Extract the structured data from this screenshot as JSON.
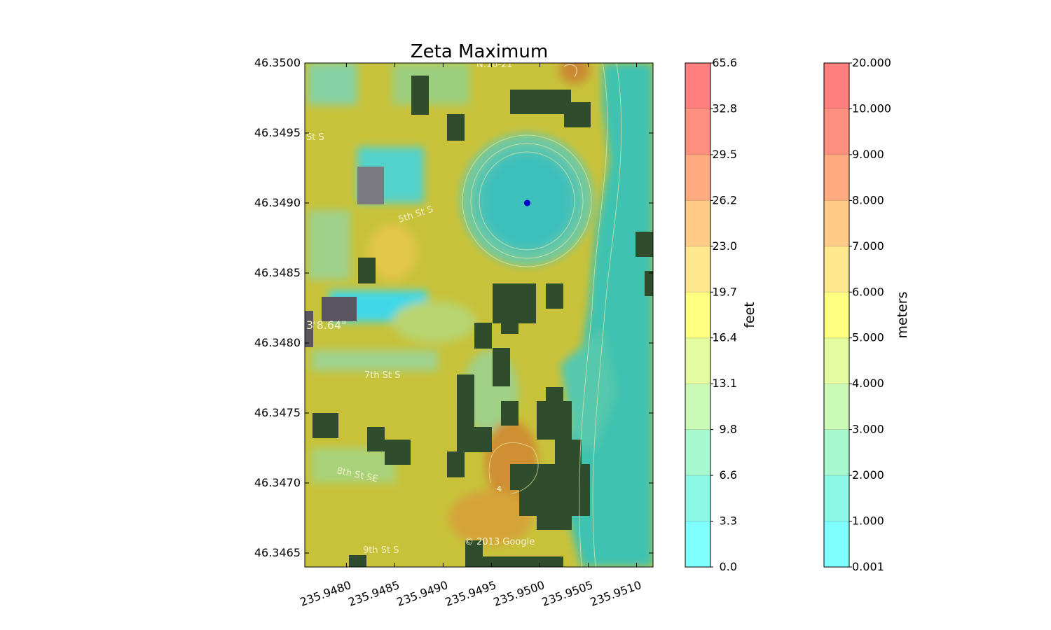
{
  "chart_data": {
    "type": "heatmap",
    "title": "Zeta Maximum",
    "xlabel": "",
    "ylabel": "",
    "x_ticks": [
      "235.9480",
      "235.9485",
      "235.9490",
      "235.9495",
      "235.9500",
      "235.9505",
      "235.9510"
    ],
    "y_ticks": [
      "46.3500",
      "46.3495",
      "46.3490",
      "46.3485",
      "46.3480",
      "46.3475",
      "46.3470",
      "46.3465"
    ],
    "xlim": [
      235.94757,
      235.95117
    ],
    "ylim": [
      46.3464,
      46.35
    ],
    "marker": {
      "lon": 235.94987,
      "lat": 46.349,
      "color": "#0000cc"
    },
    "background_labels": {
      "copyright": "© 2013 Google",
      "coordinate_fragment": "3'8.64\"",
      "streets": [
        "St S",
        "5th St S",
        "7th St S",
        "8th St SE",
        "9th St S",
        "N.16-21"
      ],
      "contour_label": "4"
    },
    "colorbars": [
      {
        "label": "feet",
        "ticks": [
          "0.0",
          "3.3",
          "6.6",
          "9.8",
          "13.1",
          "16.4",
          "19.7",
          "23.0",
          "26.2",
          "29.5",
          "32.8",
          "65.6"
        ]
      },
      {
        "label": "meters",
        "ticks": [
          "0.001",
          "1.000",
          "2.000",
          "3.000",
          "4.000",
          "5.000",
          "6.000",
          "7.000",
          "8.000",
          "9.000",
          "10.000",
          "20.000"
        ]
      }
    ],
    "level_colors": [
      "#80ffff",
      "#8bf7e6",
      "#a8f8cf",
      "#cbfab7",
      "#e5fb9f",
      "#ffff80",
      "#ffe88c",
      "#ffcc88",
      "#ffaa80",
      "#ff9080",
      "#ff7f7f"
    ]
  }
}
